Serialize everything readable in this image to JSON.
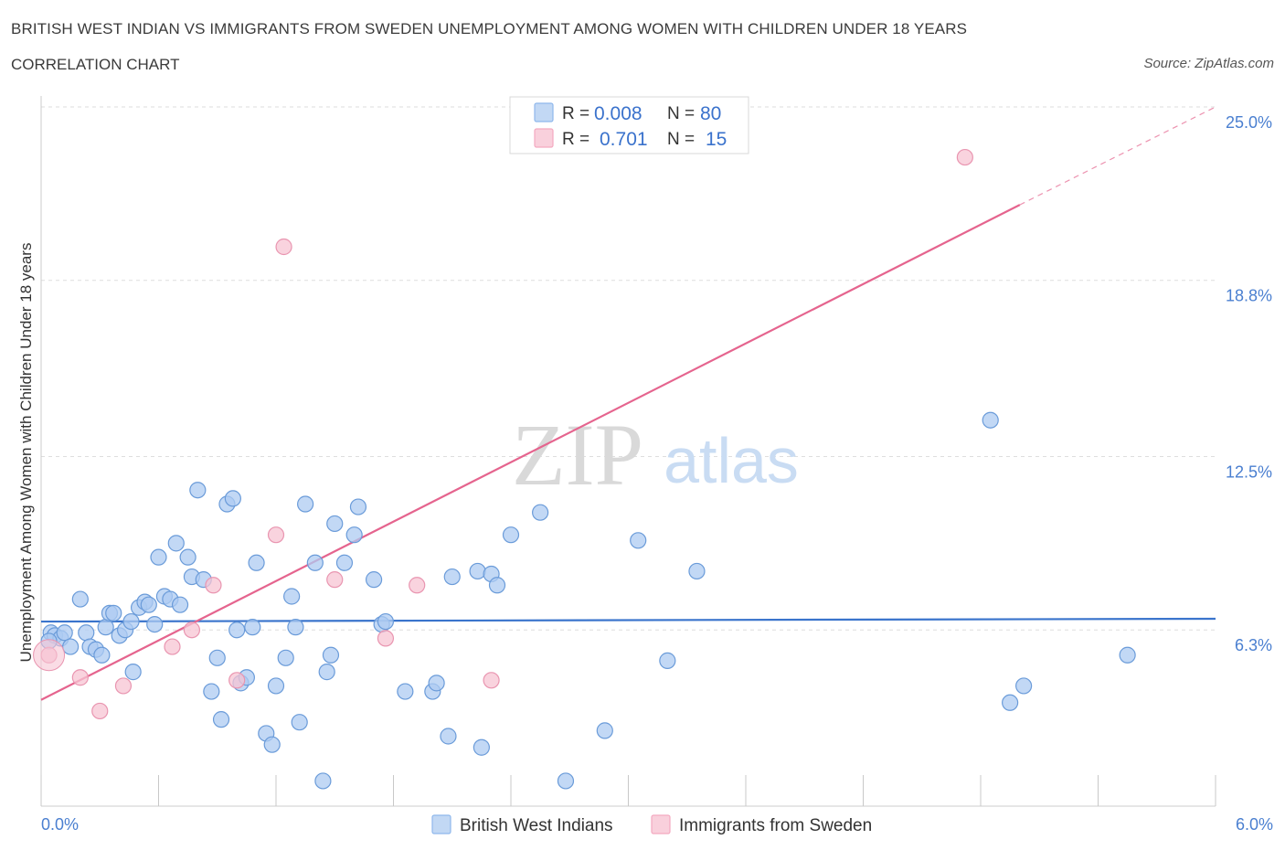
{
  "header": {
    "title": "BRITISH WEST INDIAN VS IMMIGRANTS FROM SWEDEN UNEMPLOYMENT AMONG WOMEN WITH CHILDREN UNDER 18 YEARS",
    "subtitle": "CORRELATION CHART",
    "source": "Source: ZipAtlas.com"
  },
  "watermark": {
    "zip": "ZIP",
    "atlas": "atlas"
  },
  "legend": {
    "r_label": "R =",
    "n_label": "N =",
    "rows": [
      {
        "r": "0.008",
        "n": "80",
        "color": "#8fb8ec"
      },
      {
        "r": "0.701",
        "n": "15",
        "color": "#f4a9c0"
      }
    ]
  },
  "colors": {
    "blue_fill": "#aecbf1",
    "blue_stroke": "#6a9bd9",
    "blue_line": "#3a74cc",
    "pink_fill": "#f7c4d3",
    "pink_stroke": "#e995b0",
    "pink_line": "#e5648e",
    "grid": "#dedede",
    "tick_text": "#4a7fd0"
  },
  "chart_data": {
    "type": "scatter",
    "title": "BRITISH WEST INDIAN VS IMMIGRANTS FROM SWEDEN UNEMPLOYMENT AMONG WOMEN WITH CHILDREN UNDER 18 YEARS",
    "xlabel": "",
    "ylabel": "Unemployment Among Women with Children Under 18 years",
    "xlim": [
      0,
      6.0
    ],
    "ylim": [
      0,
      25.0
    ],
    "x_tick_labels": [
      "0.0%",
      "6.0%"
    ],
    "y_ticks": [
      6.3,
      12.5,
      18.8,
      25.0
    ],
    "y_tick_labels": [
      "6.3%",
      "12.5%",
      "18.8%",
      "25.0%"
    ],
    "grid": true,
    "legend_position": "bottom",
    "series": [
      {
        "name": "British West Indians",
        "r": 0.008,
        "n": 80,
        "trend": {
          "x": [
            0.0,
            6.0
          ],
          "y": [
            6.6,
            6.7
          ]
        },
        "points": [
          [
            0.05,
            6.2
          ],
          [
            0.07,
            6.1
          ],
          [
            0.1,
            6.0
          ],
          [
            0.12,
            6.2
          ],
          [
            0.15,
            5.7
          ],
          [
            0.2,
            7.4
          ],
          [
            0.23,
            6.2
          ],
          [
            0.25,
            5.7
          ],
          [
            0.28,
            5.6
          ],
          [
            0.31,
            5.4
          ],
          [
            0.33,
            6.4
          ],
          [
            0.35,
            6.9
          ],
          [
            0.37,
            6.9
          ],
          [
            0.4,
            6.1
          ],
          [
            0.43,
            6.3
          ],
          [
            0.47,
            4.8
          ],
          [
            0.5,
            7.1
          ],
          [
            0.53,
            7.3
          ],
          [
            0.55,
            7.2
          ],
          [
            0.58,
            6.5
          ],
          [
            0.6,
            8.9
          ],
          [
            0.63,
            7.5
          ],
          [
            0.66,
            7.4
          ],
          [
            0.69,
            9.4
          ],
          [
            0.71,
            7.2
          ],
          [
            0.75,
            8.9
          ],
          [
            0.77,
            8.2
          ],
          [
            0.8,
            11.3
          ],
          [
            0.83,
            8.1
          ],
          [
            0.87,
            4.1
          ],
          [
            0.9,
            5.3
          ],
          [
            0.92,
            3.1
          ],
          [
            0.95,
            10.8
          ],
          [
            0.98,
            11.0
          ],
          [
            1.0,
            6.3
          ],
          [
            1.02,
            4.4
          ],
          [
            1.05,
            4.6
          ],
          [
            1.08,
            6.4
          ],
          [
            1.1,
            8.7
          ],
          [
            1.15,
            2.6
          ],
          [
            1.18,
            2.2
          ],
          [
            1.2,
            4.3
          ],
          [
            1.25,
            5.3
          ],
          [
            1.28,
            7.5
          ],
          [
            1.3,
            6.4
          ],
          [
            1.32,
            3.0
          ],
          [
            1.35,
            10.8
          ],
          [
            1.4,
            8.7
          ],
          [
            1.44,
            0.9
          ],
          [
            1.46,
            4.8
          ],
          [
            1.48,
            5.4
          ],
          [
            1.5,
            10.1
          ],
          [
            1.55,
            8.7
          ],
          [
            1.6,
            9.7
          ],
          [
            1.62,
            10.7
          ],
          [
            1.7,
            8.1
          ],
          [
            1.74,
            6.5
          ],
          [
            1.76,
            6.6
          ],
          [
            1.86,
            4.1
          ],
          [
            2.0,
            4.1
          ],
          [
            2.02,
            4.4
          ],
          [
            2.08,
            2.5
          ],
          [
            2.1,
            8.2
          ],
          [
            2.23,
            8.4
          ],
          [
            2.25,
            2.1
          ],
          [
            2.3,
            8.3
          ],
          [
            2.33,
            7.9
          ],
          [
            2.4,
            9.7
          ],
          [
            2.55,
            10.5
          ],
          [
            2.68,
            0.9
          ],
          [
            2.88,
            2.7
          ],
          [
            3.05,
            9.5
          ],
          [
            3.2,
            5.2
          ],
          [
            3.35,
            8.4
          ],
          [
            4.85,
            13.8
          ],
          [
            4.95,
            3.7
          ],
          [
            5.02,
            4.3
          ],
          [
            5.55,
            5.4
          ],
          [
            0.04,
            5.9
          ],
          [
            0.46,
            6.6
          ]
        ]
      },
      {
        "name": "Immigrants from Sweden",
        "r": 0.701,
        "n": 15,
        "trend": {
          "x": [
            0.0,
            5.0
          ],
          "y": [
            3.8,
            21.5
          ],
          "dashed_to": [
            6.0,
            25.0
          ]
        },
        "points": [
          [
            0.04,
            5.4
          ],
          [
            0.2,
            4.6
          ],
          [
            0.3,
            3.4
          ],
          [
            0.42,
            4.3
          ],
          [
            0.67,
            5.7
          ],
          [
            0.77,
            6.3
          ],
          [
            0.88,
            7.9
          ],
          [
            1.0,
            4.5
          ],
          [
            1.2,
            9.7
          ],
          [
            1.24,
            20.0
          ],
          [
            1.5,
            8.1
          ],
          [
            1.76,
            6.0
          ],
          [
            1.92,
            7.9
          ],
          [
            2.3,
            4.5
          ],
          [
            4.72,
            23.2
          ]
        ]
      }
    ]
  },
  "bottom_legend": {
    "items": [
      {
        "label": "British West Indians"
      },
      {
        "label": "Immigrants from Sweden"
      }
    ]
  }
}
